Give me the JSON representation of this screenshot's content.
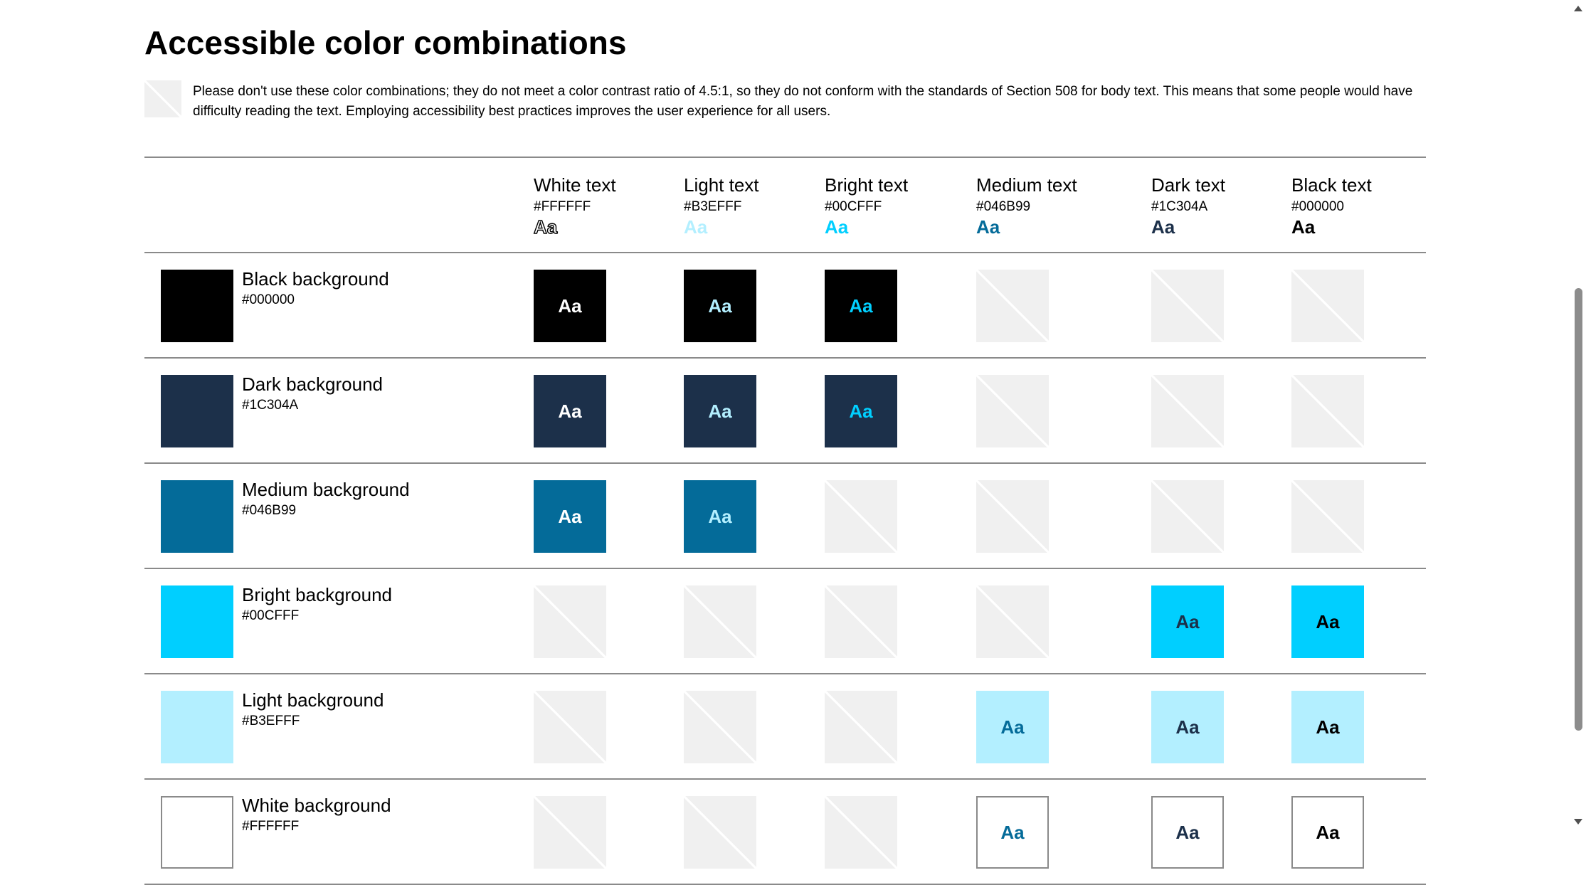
{
  "page": {
    "title": "Accessible color combinations",
    "notice": "Please don't use these color combinations; they do not meet a color contrast ratio of 4.5:1, so they do not conform with the standards of Section 508 for body text. This means that some people would have difficulty reading the text. Employing accessibility best practices improves the user experience for all users."
  },
  "sample_text": "Aa",
  "text_colors": [
    {
      "name": "White text",
      "hex": "#FFFFFF",
      "color": "#FFFFFF"
    },
    {
      "name": "Light text",
      "hex": "#B3EFFF",
      "color": "#B3EFFF"
    },
    {
      "name": "Bright text",
      "hex": "#00CFFF",
      "color": "#00CFFF"
    },
    {
      "name": "Medium text",
      "hex": "#046B99",
      "color": "#046B99"
    },
    {
      "name": "Dark text",
      "hex": "#1C304A",
      "color": "#1C304A"
    },
    {
      "name": "Black text",
      "hex": "#000000",
      "color": "#000000"
    }
  ],
  "backgrounds": [
    {
      "name": "Black background",
      "hex": "#000000",
      "color": "#000000",
      "valid": [
        true,
        true,
        true,
        false,
        false,
        false
      ]
    },
    {
      "name": "Dark background",
      "hex": "#1C304A",
      "color": "#1C304A",
      "valid": [
        true,
        true,
        true,
        false,
        false,
        false
      ]
    },
    {
      "name": "Medium background",
      "hex": "#046B99",
      "color": "#046B99",
      "valid": [
        true,
        true,
        false,
        false,
        false,
        false
      ]
    },
    {
      "name": "Bright background",
      "hex": "#00CFFF",
      "color": "#00CFFF",
      "valid": [
        false,
        false,
        false,
        false,
        true,
        true
      ]
    },
    {
      "name": "Light background",
      "hex": "#B3EFFF",
      "color": "#B3EFFF",
      "valid": [
        false,
        false,
        false,
        true,
        true,
        true
      ]
    },
    {
      "name": "White background",
      "hex": "#FFFFFF",
      "color": "#FFFFFF",
      "valid": [
        false,
        false,
        false,
        true,
        true,
        true
      ]
    }
  ],
  "colors": {
    "rule": "#8A8A8A",
    "invalid_cell": "#F0F0F0",
    "white_swatch_border": "#8A8A8A"
  }
}
